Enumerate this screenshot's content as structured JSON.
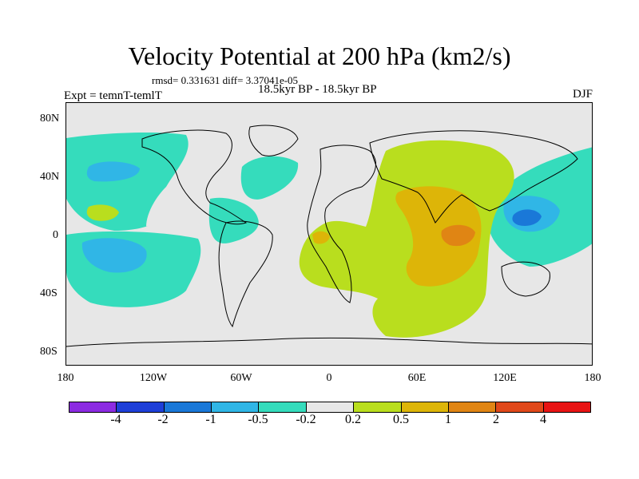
{
  "header": {
    "title": "Velocity Potential at 200 hPa (km2/s)",
    "stats": "rmsd= 0.331631 diff= 3.37041e-05",
    "periods": "18.5kyr BP - 18.5kyr BP",
    "experiment": "Expt = temnT-temlT",
    "season": "DJF"
  },
  "axes": {
    "y_ticks": [
      "80N",
      "40N",
      "0",
      "40S",
      "80S"
    ],
    "x_ticks": [
      "180",
      "120W",
      "60W",
      "0",
      "60E",
      "120E",
      "180"
    ]
  },
  "colorbar": {
    "colors": [
      "#8c2be2",
      "#1e3fd8",
      "#1a78d8",
      "#30b6e6",
      "#35dcbc",
      "#e7e7e7",
      "#b9de1e",
      "#ddb508",
      "#e08514",
      "#e0481a",
      "#e81414"
    ],
    "labels": [
      "-4",
      "-2",
      "-1",
      "-0.5",
      "-0.2",
      "0.2",
      "0.5",
      "1",
      "2",
      "4"
    ]
  },
  "fills": {
    "neg_light": "#35dcbc",
    "neg_mid": "#30b6e6",
    "neg_strong": "#1a78d8",
    "pos_light": "#b9de1e",
    "pos_mid": "#ddb508",
    "pos_strong": "#e08514",
    "coast": "#000000"
  }
}
